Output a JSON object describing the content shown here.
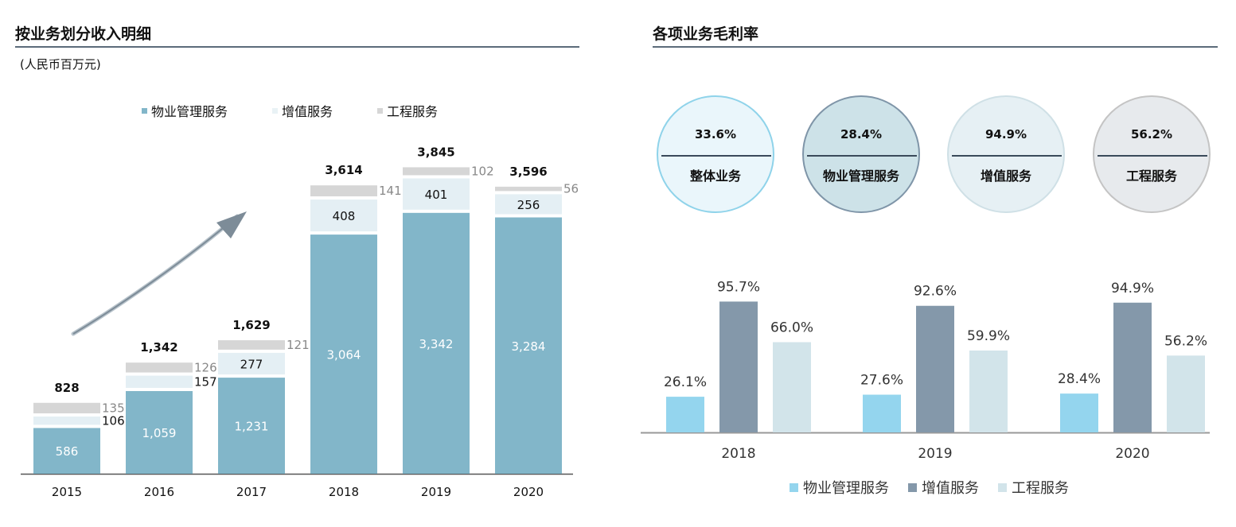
{
  "left": {
    "title": "按业务划分收入明细",
    "unit": "(人民币百万元)",
    "legend": [
      {
        "label": "物业管理服务",
        "color": "#82b6c9"
      },
      {
        "label": "增值服务",
        "color": "#e4eff4"
      },
      {
        "label": "工程服务",
        "color": "#d6d6d6"
      }
    ]
  },
  "right": {
    "title": "各项业务毛利率",
    "circles": [
      {
        "value": "33.6%",
        "label": "整体业务",
        "fill": "#eaf6fb",
        "border": "#8fd3ea"
      },
      {
        "value": "28.4%",
        "label": "物业管理服务",
        "fill": "#cde2e8",
        "border": "#7f95a8"
      },
      {
        "value": "94.9%",
        "label": "增值服务",
        "fill": "#e6f0f4",
        "border": "#cfe0e6"
      },
      {
        "value": "56.2%",
        "label": "工程服务",
        "fill": "#e7eaed",
        "border": "#c4c4c4"
      }
    ],
    "legend": [
      {
        "label": "物业管理服务",
        "color": "#94d5ee"
      },
      {
        "label": "增值服务",
        "color": "#8498aa"
      },
      {
        "label": "工程服务",
        "color": "#d2e4ea"
      }
    ]
  },
  "chart_data": [
    {
      "type": "bar",
      "stacked": true,
      "categories": [
        "2015",
        "2016",
        "2017",
        "2018",
        "2019",
        "2020"
      ],
      "series": [
        {
          "name": "物业管理服务",
          "values": [
            586,
            1059,
            1231,
            3064,
            3342,
            3284
          ],
          "labels": [
            "586",
            "1,059",
            "1,231",
            "3,064",
            "3,342",
            "3,284"
          ],
          "color": "#82b6c9"
        },
        {
          "name": "增值服务",
          "values": [
            106,
            157,
            277,
            408,
            401,
            256
          ],
          "labels": [
            "106",
            "157",
            "277",
            "408",
            "401",
            "256"
          ],
          "color": "#e4eff4"
        },
        {
          "name": "工程服务",
          "values": [
            135,
            126,
            121,
            141,
            102,
            56
          ],
          "labels": [
            "135",
            "126",
            "121",
            "141",
            "102",
            "56"
          ],
          "color": "#d6d6d6"
        }
      ],
      "totals": [
        "828",
        "1,342",
        "1,629",
        "3,614",
        "3,845",
        "3,596"
      ],
      "ylim": [
        0,
        4000
      ]
    },
    {
      "type": "bar",
      "categories": [
        "2018",
        "2019",
        "2020"
      ],
      "series": [
        {
          "name": "物业管理服务",
          "values": [
            26.1,
            27.6,
            28.4
          ],
          "labels": [
            "26.1%",
            "27.6%",
            "28.4%"
          ],
          "color": "#94d5ee"
        },
        {
          "name": "增值服务",
          "values": [
            95.7,
            92.6,
            94.9
          ],
          "labels": [
            "95.7%",
            "92.6%",
            "94.9%"
          ],
          "color": "#8498aa"
        },
        {
          "name": "工程服务",
          "values": [
            66.0,
            59.9,
            56.2
          ],
          "labels": [
            "66.0%",
            "59.9%",
            "56.2%"
          ],
          "color": "#d2e4ea"
        }
      ],
      "ylim": [
        0,
        100
      ]
    }
  ]
}
